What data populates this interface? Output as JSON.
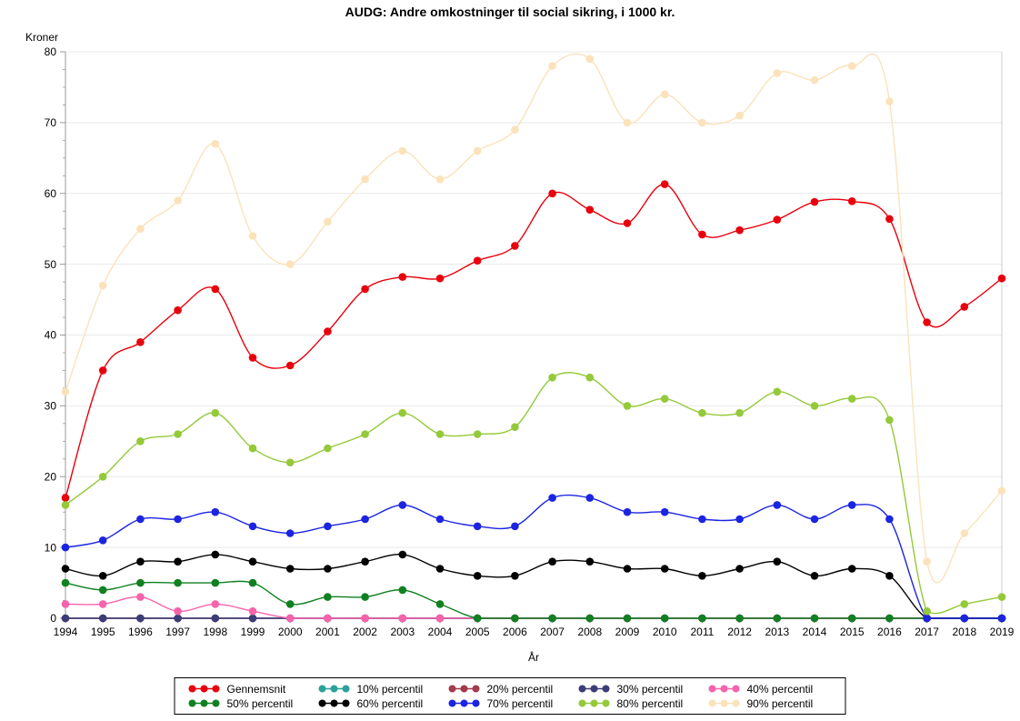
{
  "chart_data": {
    "type": "line",
    "title": "AUDG: Andre omkostninger til social sikring, i 1000 kr.",
    "xlabel": "År",
    "ylabel": "Kroner",
    "x": [
      1994,
      1995,
      1996,
      1997,
      1998,
      1999,
      2000,
      2001,
      2002,
      2003,
      2004,
      2005,
      2006,
      2007,
      2008,
      2009,
      2010,
      2011,
      2012,
      2013,
      2014,
      2015,
      2016,
      2017,
      2018,
      2019
    ],
    "ylim": [
      0,
      80
    ],
    "yticks": [
      0,
      10,
      20,
      30,
      40,
      50,
      60,
      70,
      80
    ],
    "grid": "horizontal",
    "legend_position": "bottom",
    "series": [
      {
        "name": "Gennemsnit",
        "color": "#e8000d",
        "values": [
          17,
          35,
          39,
          43.5,
          46.5,
          36.8,
          35.7,
          40.5,
          46.5,
          48.2,
          48,
          50.5,
          52.6,
          60,
          57.7,
          55.8,
          61.3,
          54.2,
          54.8,
          56.3,
          58.8,
          58.9,
          56.4,
          41.8,
          44,
          48
        ]
      },
      {
        "name": "10% percentil",
        "color": "#2aa199",
        "values": [
          0,
          0,
          0,
          0,
          0,
          0,
          0,
          0,
          0,
          0,
          0,
          0,
          0,
          0,
          0,
          0,
          0,
          0,
          0,
          0,
          0,
          0,
          0,
          0,
          0,
          0
        ]
      },
      {
        "name": "20% percentil",
        "color": "#a23b4b",
        "values": [
          0,
          0,
          0,
          0,
          0,
          0,
          0,
          0,
          0,
          0,
          0,
          0,
          0,
          0,
          0,
          0,
          0,
          0,
          0,
          0,
          0,
          0,
          0,
          0,
          0,
          0
        ]
      },
      {
        "name": "30% percentil",
        "color": "#3c3c78",
        "values": [
          0,
          0,
          0,
          0,
          0,
          0,
          0,
          0,
          0,
          0,
          0,
          0,
          0,
          0,
          0,
          0,
          0,
          0,
          0,
          0,
          0,
          0,
          0,
          0,
          0,
          0
        ]
      },
      {
        "name": "40% percentil",
        "color": "#f763ab",
        "values": [
          2,
          2,
          3,
          1,
          2,
          1,
          0,
          0,
          0,
          0,
          0,
          0,
          0,
          0,
          0,
          0,
          0,
          0,
          0,
          0,
          0,
          0,
          0,
          0,
          0,
          0
        ]
      },
      {
        "name": "50% percentil",
        "color": "#108021",
        "values": [
          5,
          4,
          5,
          5,
          5,
          5,
          2,
          3,
          3,
          4,
          2,
          0,
          0,
          0,
          0,
          0,
          0,
          0,
          0,
          0,
          0,
          0,
          0,
          0,
          0,
          0
        ]
      },
      {
        "name": "60% percentil",
        "color": "#000000",
        "values": [
          7,
          6,
          8,
          8,
          9,
          8,
          7,
          7,
          8,
          9,
          7,
          6,
          6,
          8,
          8,
          7,
          7,
          6,
          7,
          8,
          6,
          7,
          6,
          0,
          0,
          0
        ]
      },
      {
        "name": "70% percentil",
        "color": "#1b24e0",
        "values": [
          10,
          11,
          14,
          14,
          15,
          13,
          12,
          13,
          14,
          16,
          14,
          13,
          13,
          17,
          17,
          15,
          15,
          14,
          14,
          16,
          14,
          16,
          14,
          0,
          0,
          0
        ]
      },
      {
        "name": "80% percentil",
        "color": "#94c93a",
        "values": [
          16,
          20,
          25,
          26,
          29,
          24,
          22,
          24,
          26,
          29,
          26,
          26,
          27,
          34,
          34,
          30,
          31,
          29,
          29,
          32,
          30,
          31,
          28,
          1,
          2,
          3
        ]
      },
      {
        "name": "90% percentil",
        "color": "#fbe2ba",
        "values": [
          32,
          47,
          55,
          59,
          67,
          54,
          50,
          56,
          62,
          66,
          62,
          66,
          69,
          78,
          79,
          70,
          74,
          70,
          71,
          77,
          76,
          78,
          73,
          8,
          12,
          18
        ]
      }
    ]
  },
  "colors": {
    "axis": "#999999",
    "frame": "#cccccc",
    "gridline": "#e9e9e9",
    "background": "#ffffff",
    "legend_border": "#000000",
    "text": "#000000"
  }
}
